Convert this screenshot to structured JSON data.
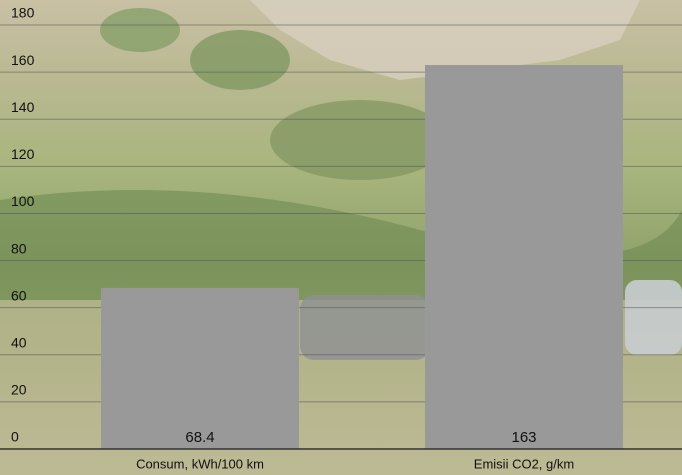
{
  "chart_data": {
    "type": "bar",
    "categories": [
      "Consum, kWh/100 km",
      "Emisii CO2, g/km"
    ],
    "values": [
      68.4,
      163
    ],
    "color": "#999999",
    "ylim": [
      0,
      180
    ],
    "yticks": [
      0,
      20,
      40,
      60,
      80,
      100,
      120,
      140,
      160,
      180
    ],
    "grid": true
  }
}
